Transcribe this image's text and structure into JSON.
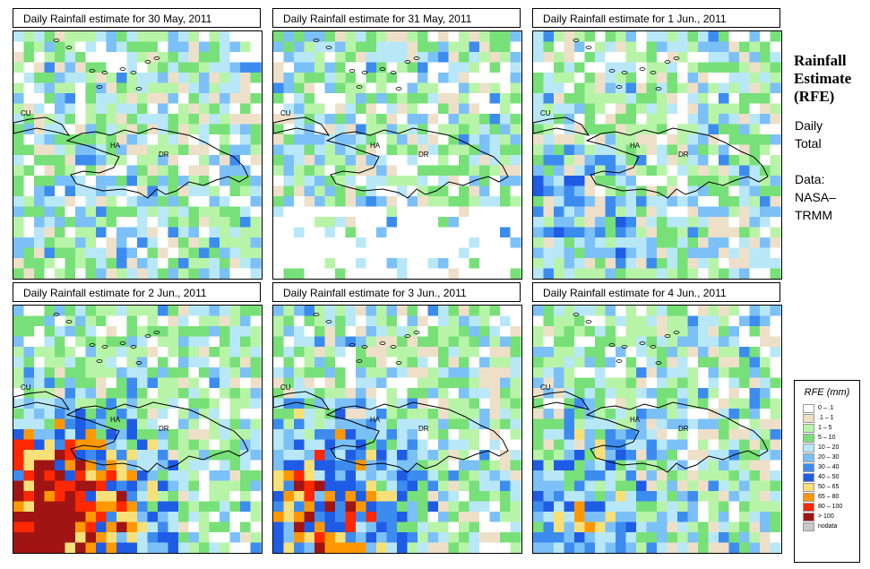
{
  "panels": [
    {
      "title": "Daily Rainfall estimate for  30 May, 2011",
      "rain_level": 0.05
    },
    {
      "title": "Daily Rainfall estimate for  31 May, 2011",
      "rain_level": 0.0
    },
    {
      "title": "Daily Rainfall estimate for  1 Jun., 2011",
      "rain_level": 0.18
    },
    {
      "title": "Daily Rainfall estimate for  2 Jun., 2011",
      "rain_level": 0.95
    },
    {
      "title": "Daily Rainfall estimate for  3 Jun., 2011",
      "rain_level": 0.6
    },
    {
      "title": "Daily Rainfall estimate for  4 Jun., 2011",
      "rain_level": 0.35
    }
  ],
  "map_labels": {
    "cu": "CU",
    "ha": "HA",
    "dr": "DR"
  },
  "sidebar": {
    "title_lines": [
      "Rainfall",
      "Estimate",
      "(RFE)"
    ],
    "period_lines": [
      "Daily",
      "Total"
    ],
    "source_lines": [
      "Data:",
      "NASA–",
      "TRMM"
    ]
  },
  "legend": {
    "title": "RFE (mm)",
    "items": [
      {
        "label": "0 – .1",
        "color": "#ffffff"
      },
      {
        "label": ".1 – 1",
        "color": "#eee0c8"
      },
      {
        "label": "1 – 5",
        "color": "#b8f4a8"
      },
      {
        "label": "5 – 10",
        "color": "#78e078"
      },
      {
        "label": "10 – 20",
        "color": "#b8e8f8"
      },
      {
        "label": "20 – 30",
        "color": "#7cc0f8"
      },
      {
        "label": "30 – 40",
        "color": "#3c8cf0"
      },
      {
        "label": "40 – 50",
        "color": "#1f5ce6"
      },
      {
        "label": "50 – 65",
        "color": "#f8e078"
      },
      {
        "label": "65 – 80",
        "color": "#ff9800"
      },
      {
        "label": "80 – 100",
        "color": "#ff2800"
      },
      {
        "label": "> 100",
        "color": "#a01414"
      },
      {
        "label": "nodata",
        "color": "#c8c8c8"
      }
    ]
  }
}
